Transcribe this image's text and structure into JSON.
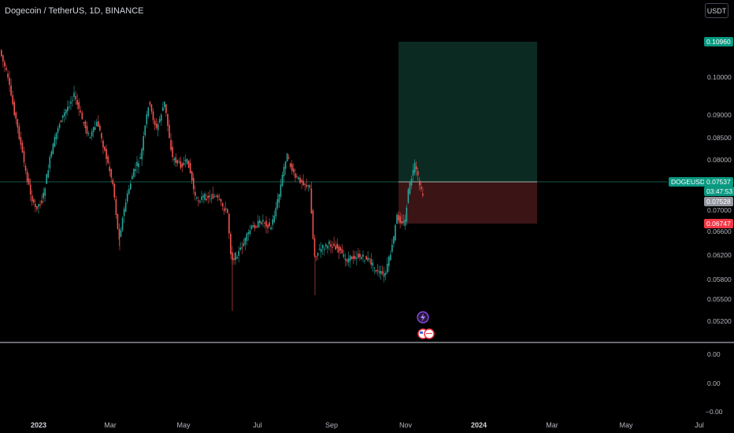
{
  "header": {
    "title": "Dogecoin / TetherUS, 1D, BINANCE",
    "currency": "USDT"
  },
  "price_axis": {
    "ticks": [
      "0.10000",
      "0.09000",
      "0.08500",
      "0.08000",
      "0.07000",
      "0.06600",
      "0.06200",
      "0.05800",
      "0.05500",
      "0.05200"
    ],
    "tags": {
      "target": "0.10960",
      "symbol": "DOGEUSDT",
      "last": "0.07537",
      "countdown": "03:47:53",
      "entry": "0.07528",
      "stop": "0.06747"
    }
  },
  "volume_axis": {
    "ticks": [
      "0.00",
      "0.00",
      "−0.00"
    ]
  },
  "time_axis": {
    "labels": [
      "2023",
      "Mar",
      "May",
      "Jul",
      "Sep",
      "Nov",
      "2024",
      "Mar",
      "May",
      "Jul"
    ]
  },
  "colors": {
    "up": "#26a69a",
    "down": "#ef5350",
    "profit_zone": "#0b2a22",
    "loss_zone": "#3b1416",
    "tag_green": "#089981",
    "tag_red": "#f23645"
  },
  "icons": [
    "lightning-icon",
    "us-flag-icon"
  ]
}
